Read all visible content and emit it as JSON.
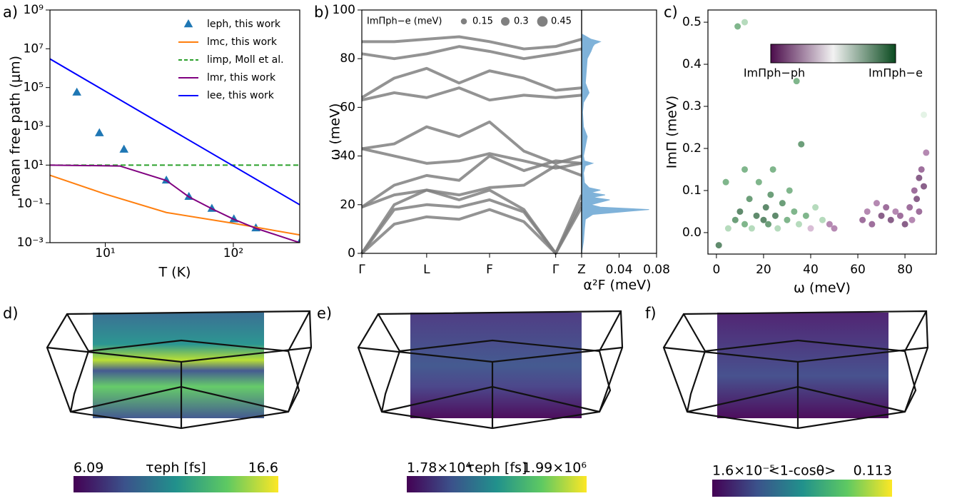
{
  "chart_data": [
    {
      "type": "line",
      "panel": "a)",
      "xlabel": "T (K)",
      "ylabel": "mean free path (μm)",
      "log_x": true,
      "log_y": true,
      "xlim": [
        3.7,
        330
      ],
      "ylim": [
        0.001,
        1000000000
      ],
      "xticks": [
        {
          "value": 10,
          "label": "10¹"
        },
        {
          "value": 100,
          "label": "10²"
        }
      ],
      "yticks": [
        {
          "value": 0.001,
          "label": "10⁻³"
        },
        {
          "value": 0.1,
          "label": "10⁻¹"
        },
        {
          "value": 10,
          "label": "10¹"
        },
        {
          "value": 1000,
          "label": "10³"
        },
        {
          "value": 100000,
          "label": "10⁵"
        },
        {
          "value": 10000000,
          "label": "10⁷"
        },
        {
          "value": 1000000000,
          "label": "10⁹"
        }
      ],
      "series": [
        {
          "name": "leph, this work",
          "color": "#1f77b4",
          "marker": "triangle",
          "x": [
            6,
            9,
            14,
            30,
            45,
            68,
            101,
            150,
            330
          ],
          "values": [
            55000,
            440,
            63,
            1.6,
            0.23,
            0.056,
            0.016,
            0.0055,
            0.001
          ]
        },
        {
          "name": "lmc, this work",
          "color": "#ff7f0e",
          "x": [
            3.7,
            10,
            30,
            100,
            330
          ],
          "values": [
            3,
            0.32,
            0.036,
            0.01,
            0.0025
          ]
        },
        {
          "name": "limp, Moll et al.",
          "color": "#2ca02c",
          "dashed": true,
          "x": [
            3.7,
            330
          ],
          "values": [
            10,
            10
          ]
        },
        {
          "name": "lmr, this work",
          "color": "#800080",
          "x": [
            3.7,
            13,
            30,
            45,
            68,
            101,
            150,
            330
          ],
          "values": [
            10,
            9,
            1.6,
            0.23,
            0.056,
            0.016,
            0.0055,
            0.001
          ]
        },
        {
          "name": "lee, this work",
          "color": "#0000ff",
          "x": [
            3.7,
            330
          ],
          "values": [
            3000000,
            0.09
          ]
        }
      ]
    },
    {
      "type": "bands",
      "panel": "b)",
      "ylabel": "ω (meV)",
      "xlim": [
        0,
        3.39
      ],
      "ylim": [
        0,
        100
      ],
      "color": "#808080",
      "xticks": [
        {
          "value": 0,
          "label": "Γ"
        },
        {
          "value": 1,
          "label": "L"
        },
        {
          "value": 1.97,
          "label": "F"
        },
        {
          "value": 2.99,
          "label": "Γ"
        },
        {
          "value": 3.39,
          "label": "Z"
        }
      ],
      "yticks": [
        0,
        20,
        40,
        60,
        80,
        100
      ],
      "x": [
        0,
        0.5,
        1,
        1.5,
        1.97,
        2.5,
        2.99,
        3.39
      ],
      "series": [
        {
          "values": [
            0,
            12,
            15,
            14,
            18,
            13,
            0,
            19
          ]
        },
        {
          "values": [
            0,
            18,
            20,
            19,
            22,
            17,
            0,
            21
          ]
        },
        {
          "values": [
            0,
            20,
            26,
            22,
            26,
            18,
            0,
            24
          ]
        },
        {
          "values": [
            19,
            24,
            26,
            24,
            27,
            28,
            36,
            32
          ]
        },
        {
          "values": [
            19,
            28,
            32,
            30,
            40,
            34,
            38,
            37
          ]
        },
        {
          "values": [
            43,
            40,
            37,
            38,
            41,
            38,
            35,
            37
          ]
        },
        {
          "values": [
            43,
            45,
            52,
            48,
            54,
            42,
            37,
            40
          ]
        },
        {
          "values": [
            63,
            66,
            64,
            68,
            63,
            65,
            64,
            65
          ]
        },
        {
          "values": [
            64,
            72,
            76,
            70,
            75,
            72,
            67,
            68
          ]
        },
        {
          "values": [
            82,
            80,
            82,
            85,
            83,
            80,
            82,
            84
          ]
        },
        {
          "values": [
            87,
            87,
            88,
            89,
            87,
            84,
            85,
            88
          ]
        }
      ],
      "size_legend": {
        "title": "ImΠph−e (meV)",
        "values": [
          0.15,
          0.3,
          0.45
        ]
      }
    },
    {
      "type": "area",
      "xlabel": "α²F (meV)",
      "xlim": [
        0,
        0.08
      ],
      "xticks": [
        0.04,
        0.08
      ],
      "ylim": [
        0,
        100
      ],
      "color": "#7fb2d9",
      "omega": [
        0,
        5,
        10,
        14,
        16,
        18,
        19,
        20,
        22,
        23,
        24,
        25,
        26,
        27,
        29,
        33,
        36,
        37,
        38,
        40,
        48,
        52,
        58,
        62,
        64,
        66,
        70,
        75,
        80,
        83,
        85,
        86,
        87,
        88,
        90
      ],
      "values": [
        0,
        0.002,
        0.003,
        0.004,
        0.012,
        0.072,
        0.02,
        0.01,
        0.03,
        0.012,
        0.025,
        0.01,
        0.02,
        0.008,
        0.003,
        0.002,
        0.004,
        0.012,
        0.003,
        0.002,
        0.006,
        0.002,
        0.001,
        0.002,
        0.005,
        0.008,
        0.004,
        0.005,
        0.006,
        0.01,
        0.012,
        0.014,
        0.02,
        0.01,
        0.001
      ]
    },
    {
      "type": "scatter",
      "panel": "c)",
      "xlabel": "ω (meV)",
      "ylabel": "ImΠ (meV)",
      "xlim": [
        -3.6,
        93.3
      ],
      "ylim": [
        -0.051,
        0.529
      ],
      "xticks": [
        0,
        20,
        40,
        60,
        80
      ],
      "yticks": [
        {
          "value": 0,
          "label": "0.0"
        },
        0.1,
        0.2,
        0.3,
        0.4,
        0.5
      ],
      "x": [
        5,
        8,
        10,
        12,
        14,
        15,
        17,
        18,
        20,
        21,
        22,
        23,
        24,
        25,
        26,
        28,
        30,
        31,
        33,
        35,
        36,
        38,
        40,
        42,
        45,
        48,
        50,
        12,
        4,
        1,
        9,
        12,
        34,
        62,
        64,
        66,
        68,
        70,
        72,
        74,
        76,
        78,
        80,
        82,
        84,
        85,
        86,
        87,
        88,
        89,
        88,
        86,
        83
      ],
      "values": [
        0.01,
        0.03,
        0.05,
        0.02,
        0.08,
        0.01,
        0.04,
        0.12,
        0.03,
        0.06,
        0.02,
        0.09,
        0.15,
        0.04,
        0.01,
        0.07,
        0.03,
        0.1,
        0.05,
        0.02,
        0.21,
        0.04,
        0.01,
        0.06,
        0.03,
        0.02,
        0.01,
        0.15,
        0.12,
        -0.03,
        0.49,
        0.5,
        0.36,
        0.03,
        0.05,
        0.02,
        0.07,
        0.04,
        0.06,
        0.03,
        0.05,
        0.04,
        0.02,
        0.06,
        0.1,
        0.08,
        0.13,
        0.15,
        0.11,
        0.19,
        0.28,
        0.05,
        0.03
      ],
      "colors": [
        "#8fc79a",
        "#1e6b33",
        "#0b4d1e",
        "#3c8f4f",
        "#1e6b33",
        "#8fc79a",
        "#0b4d1e",
        "#3c8f4f",
        "#0b4d1e",
        "#0b4d1e",
        "#1e6b33",
        "#1e6b33",
        "#3c8f4f",
        "#0b4d1e",
        "#8fc79a",
        "#1e6b33",
        "#3c8f4f",
        "#3c8f4f",
        "#3c8f4f",
        "#8fc79a",
        "#1e6b33",
        "#3c8f4f",
        "#c59ac0",
        "#8fc79a",
        "#8fc79a",
        "#8e4a89",
        "#8e4a89",
        "#3c8f4f",
        "#3c8f4f",
        "#0b4d1e",
        "#3c8f4f",
        "#8fc79a",
        "#3c8f4f",
        "#6b2468",
        "#8e4a89",
        "#6b2468",
        "#8e4a89",
        "#4b0c4b",
        "#6b2468",
        "#4b0c4b",
        "#8e4a89",
        "#6b2468",
        "#4b0c4b",
        "#6b2468",
        "#6b2468",
        "#4b0c4b",
        "#4b0c4b",
        "#6b2468",
        "#4b0c4b",
        "#8e4a89",
        "#d6ecd8",
        "#6b2468",
        "#8e4a89"
      ],
      "colorbar": {
        "low": "ImΠph−ph",
        "high": "ImΠph−e",
        "colors": [
          "#4b0c4b",
          "#f2f2f2",
          "#0a4a1f"
        ]
      }
    }
  ],
  "surface_panels": [
    {
      "label": "d)",
      "colorbar": {
        "min": "6.09",
        "title": "τeph [fs]",
        "max": "16.6"
      }
    },
    {
      "label": "e)",
      "colorbar": {
        "min": "1.78×10⁴",
        "title": "τeph [fs]",
        "max": "1.99×10⁶"
      }
    },
    {
      "label": "f)",
      "colorbar": {
        "min": "1.6×10⁻⁵",
        "title": "<1-cosθ>",
        "max": "0.113"
      }
    }
  ]
}
